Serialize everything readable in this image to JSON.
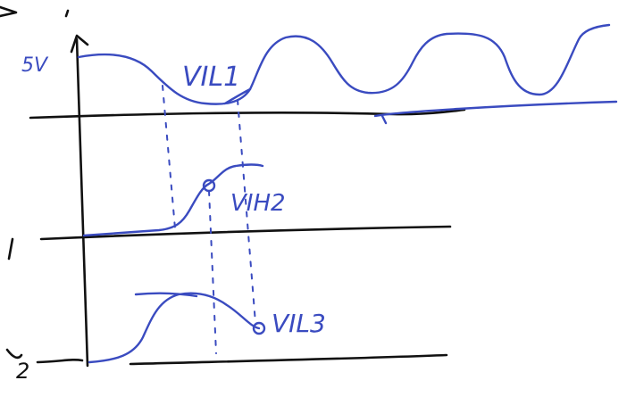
{
  "colors": {
    "ink_blue": "#3a4bc0",
    "ink_black": "#111111",
    "background": "#ffffff"
  },
  "labels": {
    "y_level": "5V",
    "v_il1": "VIL1",
    "v_ih2": "VIH2",
    "v_il3": "VIL3",
    "row2_marker": "1",
    "row3_marker": "2"
  }
}
